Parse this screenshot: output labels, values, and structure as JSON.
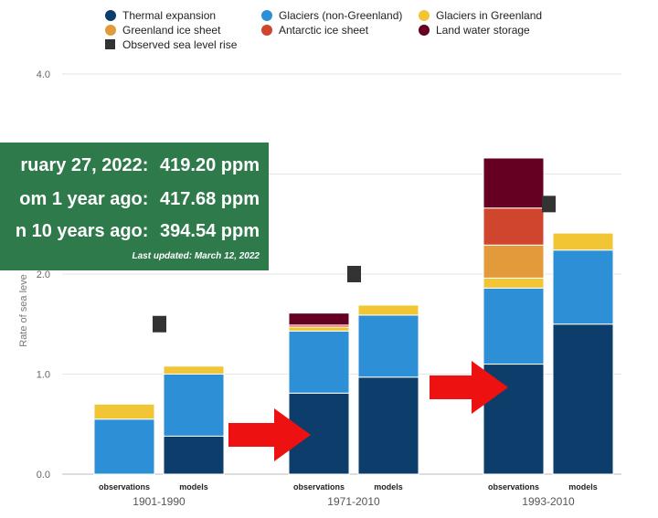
{
  "legend": [
    {
      "label": "Thermal expansion",
      "color": "#0d3d6b",
      "shape": "circle"
    },
    {
      "label": "Glaciers (non-Greenland)",
      "color": "#2d8fd5",
      "shape": "circle"
    },
    {
      "label": "Glaciers in Greenland",
      "color": "#f2c534",
      "shape": "circle"
    },
    {
      "label": "Greenland ice sheet",
      "color": "#e39a3b",
      "shape": "circle"
    },
    {
      "label": "Antarctic ice sheet",
      "color": "#d0452e",
      "shape": "circle"
    },
    {
      "label": "Land water storage",
      "color": "#660022",
      "shape": "circle"
    },
    {
      "label": "Observed sea level rise",
      "color": "#333333",
      "shape": "square"
    }
  ],
  "co2_overlay": {
    "rows": [
      {
        "label": "ruary 27, 2022:",
        "value": "419.20 ppm"
      },
      {
        "label": "om 1 year ago:",
        "value": "417.68 ppm"
      },
      {
        "label": "n 10 years ago:",
        "value": "394.54 ppm"
      }
    ],
    "updated": "Last updated: March 12, 2022",
    "background": "#2e7a4b"
  },
  "chart_data": {
    "type": "bar",
    "stacked": true,
    "ylabel": "Rate of sea leve",
    "ylim": [
      0,
      4.0
    ],
    "yticks": [
      "0.0",
      "1.0",
      "2.0",
      "4.0"
    ],
    "grid": true,
    "legend_position": "top",
    "groups": [
      {
        "period": "1901-1990",
        "observed": 1.5,
        "bars": [
          {
            "label": "observations",
            "segments": [
              0,
              0.55,
              0.15,
              0,
              0,
              0
            ]
          },
          {
            "label": "models",
            "segments": [
              0.38,
              0.62,
              0.08,
              0,
              0,
              0
            ]
          }
        ]
      },
      {
        "period": "1971-2010",
        "observed": 2.0,
        "bars": [
          {
            "label": "observations",
            "segments": [
              0.81,
              0.62,
              0.04,
              0,
              0.02,
              0.12
            ]
          },
          {
            "label": "models",
            "segments": [
              0.97,
              0.62,
              0.1,
              0,
              0,
              0
            ]
          }
        ]
      },
      {
        "period": "1993-2010",
        "observed": 2.7,
        "bars": [
          {
            "label": "observations",
            "segments": [
              1.1,
              0.76,
              0.1,
              0.33,
              0.37,
              0.5
            ]
          },
          {
            "label": "models",
            "segments": [
              1.5,
              0.74,
              0.17,
              0,
              0,
              0
            ]
          }
        ]
      }
    ],
    "annotations": [
      {
        "type": "arrow",
        "color": "#ee1111",
        "near": "1971-2010 observations"
      },
      {
        "type": "arrow",
        "color": "#ee1111",
        "near": "1993-2010 observations"
      }
    ]
  }
}
